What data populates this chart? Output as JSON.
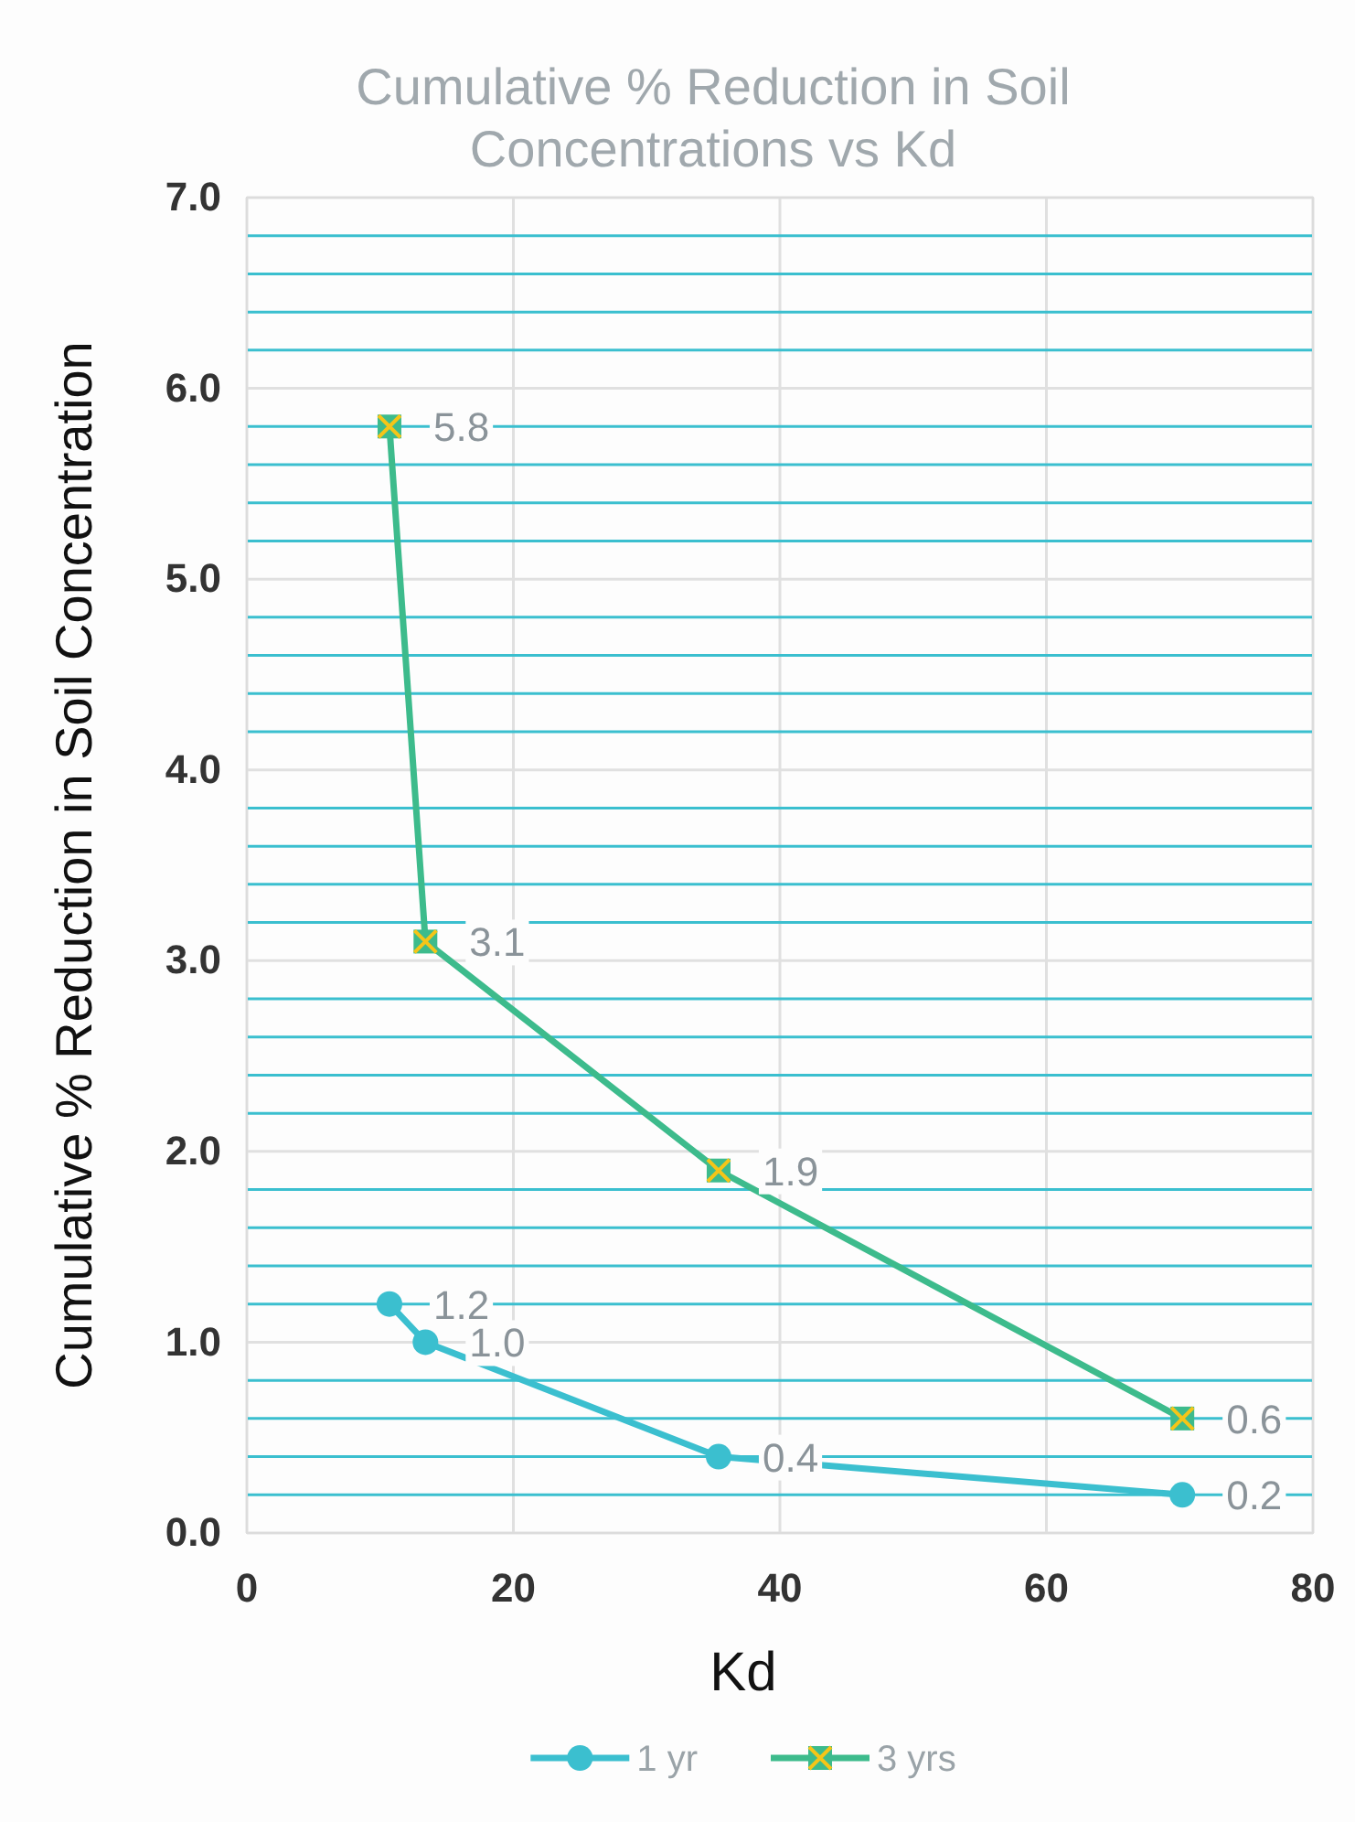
{
  "chart_data": {
    "type": "line",
    "title": "Cumulative % Reduction in Soil Concentrations vs Kd",
    "xlabel": "Kd",
    "ylabel": "Cumulative % Reduction in Soil Concentration",
    "xlim": [
      0,
      80
    ],
    "xticks": [
      0,
      20,
      40,
      60,
      80
    ],
    "ylim": [
      0,
      7
    ],
    "yticks": [
      "0.0",
      {
        "value": 0.2,
        "label": null
      },
      {
        "value": 0.4,
        "label": null
      },
      {
        "value": 0.6,
        "label": null
      },
      {
        "value": 0.8,
        "label": null
      },
      {
        "value": 1,
        "label": "1.0"
      },
      {
        "value": 1.2,
        "label": null
      },
      {
        "value": 1.4,
        "label": null
      },
      {
        "value": 1.6,
        "label": null
      },
      {
        "value": 1.8,
        "label": null
      },
      {
        "value": 2,
        "label": "2.0"
      },
      {
        "value": 2.2,
        "label": null
      },
      {
        "value": 2.4,
        "label": null
      },
      {
        "value": 2.6,
        "label": null
      },
      {
        "value": 2.8,
        "label": null
      },
      {
        "value": 3,
        "label": "3.0"
      },
      {
        "value": 3.2,
        "label": null
      },
      {
        "value": 3.4,
        "label": null
      },
      {
        "value": 3.6,
        "label": null
      },
      {
        "value": 3.8,
        "label": null
      },
      {
        "value": 4,
        "label": "4.0"
      },
      {
        "value": 4.2,
        "label": null
      },
      {
        "value": 4.4,
        "label": null
      },
      {
        "value": 4.6,
        "label": null
      },
      {
        "value": 4.8,
        "label": null
      },
      {
        "value": 5,
        "label": "5.0"
      },
      {
        "value": 5.2,
        "label": null
      },
      {
        "value": 5.4,
        "label": null
      },
      {
        "value": 5.6,
        "label": null
      },
      {
        "value": 5.8,
        "label": null
      },
      {
        "value": 6,
        "label": "6.0"
      },
      {
        "value": 6.2,
        "label": null
      },
      {
        "value": 6.4,
        "label": null
      },
      {
        "value": 6.6,
        "label": null
      },
      {
        "value": 6.8,
        "label": null
      },
      {
        "value": 7,
        "label": "7.0"
      }
    ],
    "grid": true,
    "legend": "bottom",
    "series": [
      {
        "name": "1 yr",
        "color": "#3bbfcf",
        "marker": "circle",
        "x": [
          10.7,
          13.4,
          35.4,
          70.2
        ],
        "values": [
          1.2,
          1.0,
          0.4,
          0.2
        ],
        "value_labels": [
          "1.2",
          "1.0",
          "0.4",
          "0.2"
        ]
      },
      {
        "name": "3 yrs",
        "color": "#3dbb8c",
        "marker": "square",
        "x": [
          10.7,
          13.4,
          35.4,
          70.2
        ],
        "values": [
          5.8,
          3.1,
          1.9,
          0.6
        ],
        "value_labels": [
          "5.8",
          "3.1",
          "1.9",
          "0.6"
        ]
      }
    ]
  }
}
